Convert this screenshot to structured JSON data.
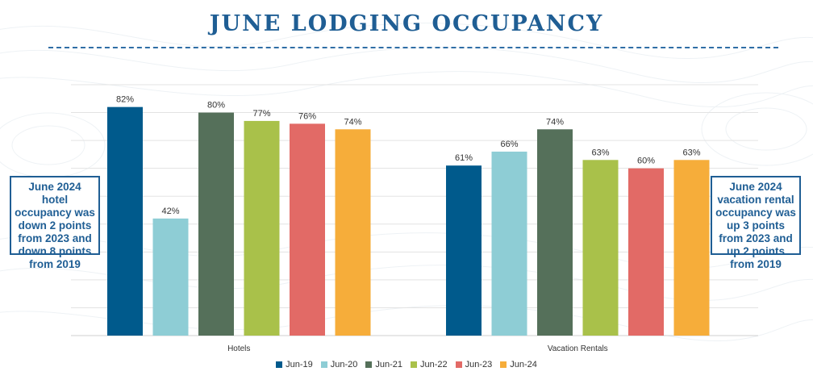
{
  "title": "JUNE LODGING OCCUPANCY",
  "callouts": {
    "left": "June 2024 hotel occupancy was down 2 points from 2023 and down 8 points from 2019",
    "right": "June 2024 vacation rental occupancy was up 3 points from 2023 and up 2 points from 2019"
  },
  "colors": {
    "title": "#1f5e94",
    "series": [
      "#005a8c",
      "#8ecdd5",
      "#55705a",
      "#a9c14a",
      "#e26a66",
      "#f6ad3a"
    ]
  },
  "chart_data": {
    "type": "bar",
    "title": "JUNE LODGING OCCUPANCY",
    "xlabel": "",
    "ylabel": "",
    "ylim": [
      0,
      90
    ],
    "grid": true,
    "legend": "bottom",
    "categories": [
      "Hotels",
      "Vacation Rentals"
    ],
    "series": [
      {
        "name": "Jun-19",
        "values": [
          82,
          61
        ],
        "labels": [
          "82%",
          "61%"
        ]
      },
      {
        "name": "Jun-20",
        "values": [
          42,
          66
        ],
        "labels": [
          "42%",
          "66%"
        ]
      },
      {
        "name": "Jun-21",
        "values": [
          80,
          74
        ],
        "labels": [
          "80%",
          "74%"
        ]
      },
      {
        "name": "Jun-22",
        "values": [
          77,
          63
        ],
        "labels": [
          "77%",
          "63%"
        ]
      },
      {
        "name": "Jun-23",
        "values": [
          76,
          60
        ],
        "labels": [
          "76%",
          "60%"
        ]
      },
      {
        "name": "Jun-24",
        "values": [
          74,
          63
        ],
        "labels": [
          "74%",
          "63%"
        ]
      }
    ]
  }
}
